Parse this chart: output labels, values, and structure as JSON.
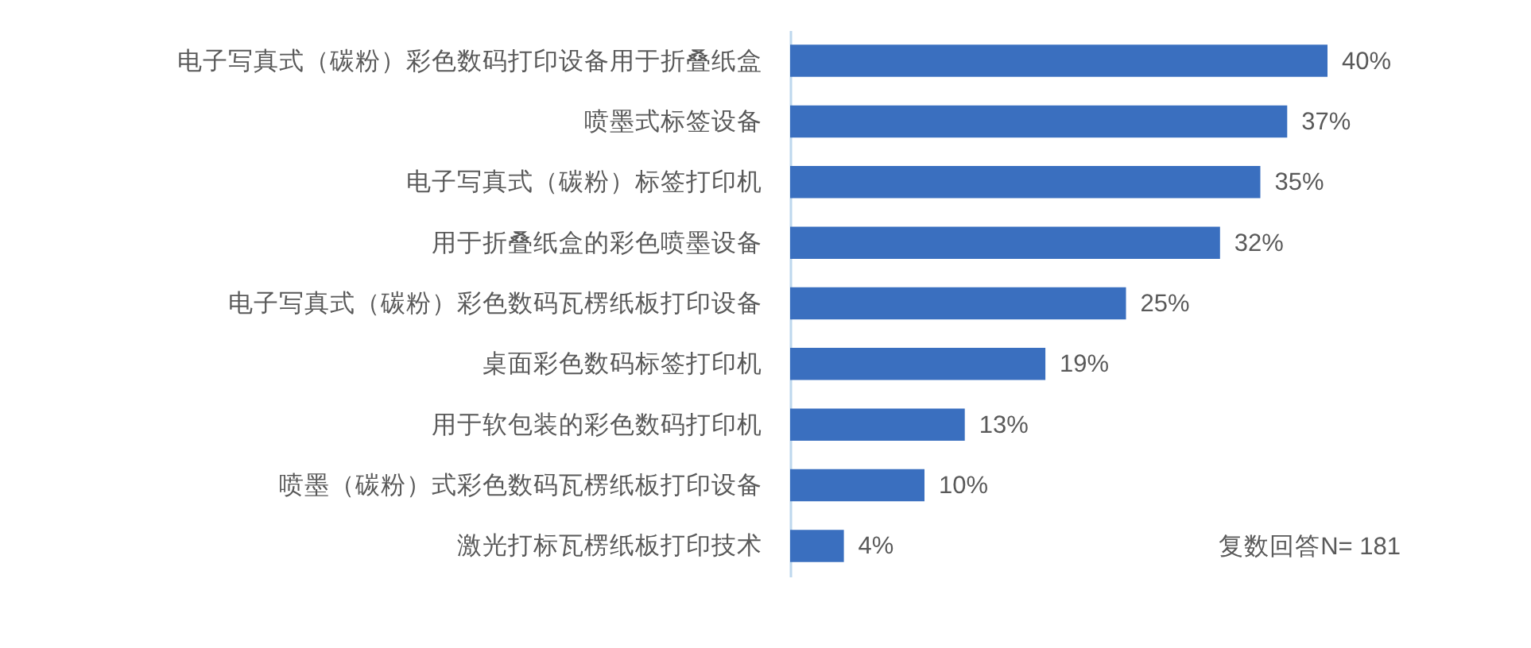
{
  "chart_data": {
    "type": "bar",
    "orientation": "horizontal",
    "categories": [
      "电子写真式（碳粉）彩色数码打印设备用于折叠纸盒",
      "喷墨式标签设备",
      "电子写真式（碳粉）标签打印机",
      "用于折叠纸盒的彩色喷墨设备",
      "电子写真式（碳粉）彩色数码瓦楞纸板打印设备",
      "桌面彩色数码标签打印机",
      "用于软包装的彩色数码打印机",
      "喷墨（碳粉）式彩色数码瓦楞纸板打印设备",
      "激光打标瓦楞纸板打印技术"
    ],
    "values": [
      40,
      37,
      35,
      32,
      25,
      19,
      13,
      10,
      4
    ],
    "value_labels": [
      "40%",
      "37%",
      "35%",
      "32%",
      "25%",
      "19%",
      "13%",
      "10%",
      "4%"
    ],
    "color": "#3a6fbf",
    "annotations": [
      "复数回答N= 181"
    ]
  }
}
